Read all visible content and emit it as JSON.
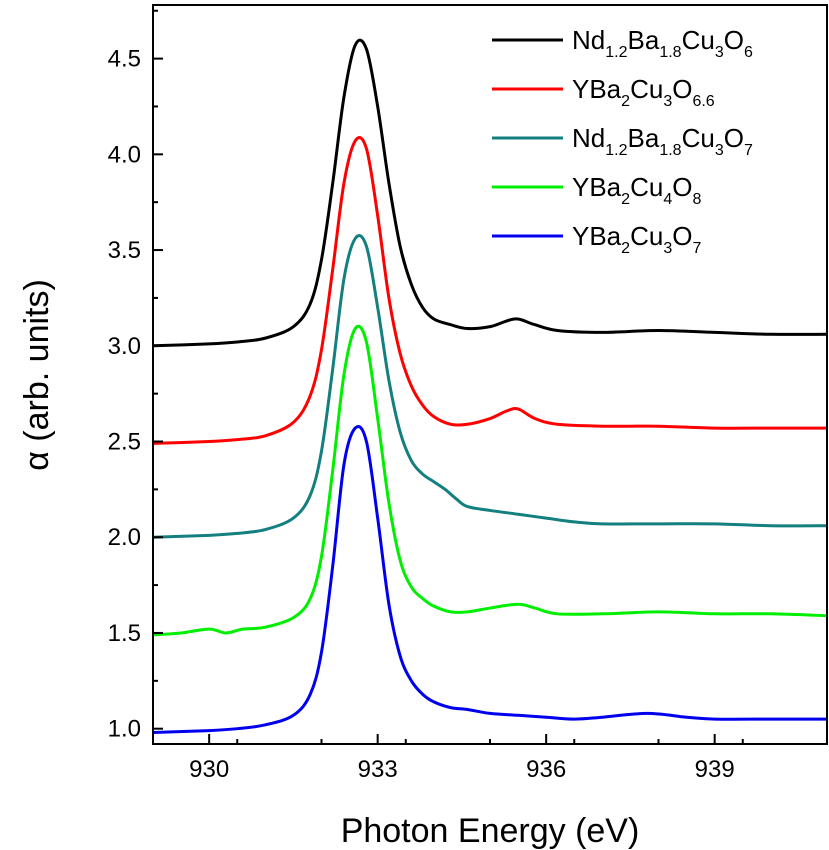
{
  "chart_data": {
    "type": "line",
    "xlabel": "Photon Energy (eV)",
    "ylabel": "α (arb. units)",
    "xlim": [
      929,
      941
    ],
    "ylim": [
      0.92,
      4.78
    ],
    "xticks": [
      930,
      933,
      936,
      939
    ],
    "yticks": [
      1.0,
      1.5,
      2.0,
      2.5,
      3.0,
      3.5,
      4.0,
      4.5
    ],
    "xtick_labels": [
      "930",
      "933",
      "936",
      "939"
    ],
    "ytick_labels": [
      "1.0",
      "1.5",
      "2.0",
      "2.5",
      "3.0",
      "3.5",
      "4.0",
      "4.5"
    ],
    "grid": false,
    "legend_position": "top-right",
    "series": [
      {
        "name": "Nd1.2Ba1.8Cu3O6",
        "name_parts": [
          [
            "Nd",
            ""
          ],
          [
            "1.2",
            "sub"
          ],
          [
            "Ba",
            ""
          ],
          [
            "1.8",
            "sub"
          ],
          [
            "Cu",
            ""
          ],
          [
            "3",
            "sub"
          ],
          [
            "O",
            ""
          ],
          [
            "6",
            "sub"
          ]
        ],
        "color": "#000000",
        "x": [
          929.0,
          930.0,
          930.5,
          931.0,
          931.5,
          931.8,
          932.0,
          932.2,
          932.4,
          932.6,
          932.8,
          933.0,
          933.2,
          933.4,
          933.6,
          933.8,
          934.0,
          934.3,
          934.6,
          935.0,
          935.3,
          935.5,
          935.8,
          936.2,
          937.0,
          938.0,
          939.0,
          940.0,
          941.0
        ],
        "y": [
          3.0,
          3.01,
          3.02,
          3.04,
          3.1,
          3.22,
          3.45,
          3.85,
          4.3,
          4.57,
          4.55,
          4.25,
          3.85,
          3.52,
          3.32,
          3.2,
          3.14,
          3.11,
          3.09,
          3.1,
          3.13,
          3.14,
          3.11,
          3.08,
          3.07,
          3.08,
          3.07,
          3.06,
          3.06
        ]
      },
      {
        "name": "YBa2Cu3O6.6",
        "name_parts": [
          [
            "YBa",
            ""
          ],
          [
            "2",
            "sub"
          ],
          [
            "Cu",
            ""
          ],
          [
            "3",
            "sub"
          ],
          [
            "O",
            ""
          ],
          [
            "6.6",
            "sub"
          ]
        ],
        "color": "#ff0000",
        "x": [
          929.0,
          930.0,
          930.5,
          931.0,
          931.5,
          931.8,
          932.0,
          932.2,
          932.4,
          932.6,
          932.8,
          933.0,
          933.2,
          933.4,
          933.6,
          933.8,
          934.0,
          934.3,
          934.6,
          935.0,
          935.3,
          935.5,
          935.8,
          936.2,
          937.0,
          938.0,
          939.0,
          940.0,
          941.0
        ],
        "y": [
          2.49,
          2.5,
          2.51,
          2.53,
          2.6,
          2.74,
          2.98,
          3.4,
          3.85,
          4.07,
          4.03,
          3.68,
          3.25,
          2.96,
          2.79,
          2.69,
          2.63,
          2.59,
          2.59,
          2.62,
          2.66,
          2.67,
          2.62,
          2.59,
          2.58,
          2.58,
          2.57,
          2.57,
          2.57
        ]
      },
      {
        "name": "Nd1.2Ba1.8Cu3O7",
        "name_parts": [
          [
            "Nd",
            ""
          ],
          [
            "1.2",
            "sub"
          ],
          [
            "Ba",
            ""
          ],
          [
            "1.8",
            "sub"
          ],
          [
            "Cu",
            ""
          ],
          [
            "3",
            "sub"
          ],
          [
            "O",
            ""
          ],
          [
            "7",
            "sub"
          ]
        ],
        "color": "#137f7f",
        "x": [
          929.0,
          930.0,
          930.5,
          931.0,
          931.5,
          931.8,
          932.0,
          932.2,
          932.4,
          932.6,
          932.8,
          933.0,
          933.2,
          933.4,
          933.6,
          933.8,
          934.0,
          934.2,
          934.4,
          934.6,
          935.0,
          935.5,
          936.0,
          936.5,
          937.0,
          938.0,
          939.0,
          940.0,
          941.0
        ],
        "y": [
          2.0,
          2.01,
          2.02,
          2.04,
          2.1,
          2.22,
          2.45,
          2.88,
          3.35,
          3.56,
          3.52,
          3.2,
          2.82,
          2.55,
          2.4,
          2.33,
          2.29,
          2.25,
          2.2,
          2.16,
          2.14,
          2.12,
          2.1,
          2.08,
          2.07,
          2.07,
          2.07,
          2.06,
          2.06
        ]
      },
      {
        "name": "YBa2Cu4O8",
        "name_parts": [
          [
            "YBa",
            ""
          ],
          [
            "2",
            "sub"
          ],
          [
            "Cu",
            ""
          ],
          [
            "4",
            "sub"
          ],
          [
            "O",
            ""
          ],
          [
            "8",
            "sub"
          ]
        ],
        "color": "#00ee00",
        "x": [
          929.0,
          929.5,
          930.0,
          930.3,
          930.6,
          931.0,
          931.5,
          931.8,
          932.0,
          932.2,
          932.4,
          932.6,
          932.8,
          933.0,
          933.2,
          933.4,
          933.6,
          933.8,
          934.0,
          934.3,
          934.6,
          935.0,
          935.5,
          935.8,
          936.2,
          937.0,
          938.0,
          939.0,
          940.0,
          941.0
        ],
        "y": [
          1.49,
          1.5,
          1.52,
          1.5,
          1.52,
          1.53,
          1.58,
          1.68,
          1.9,
          2.35,
          2.85,
          3.09,
          3.02,
          2.62,
          2.18,
          1.88,
          1.74,
          1.68,
          1.64,
          1.61,
          1.61,
          1.63,
          1.65,
          1.63,
          1.6,
          1.6,
          1.61,
          1.6,
          1.6,
          1.59
        ]
      },
      {
        "name": "YBa2Cu3O7",
        "name_parts": [
          [
            "YBa",
            ""
          ],
          [
            "2",
            "sub"
          ],
          [
            "Cu",
            ""
          ],
          [
            "3",
            "sub"
          ],
          [
            "O",
            ""
          ],
          [
            "7",
            "sub"
          ]
        ],
        "color": "#0000ee",
        "x": [
          929.0,
          930.0,
          930.5,
          931.0,
          931.5,
          931.8,
          932.0,
          932.2,
          932.4,
          932.6,
          932.8,
          933.0,
          933.2,
          933.4,
          933.6,
          933.8,
          934.0,
          934.3,
          934.6,
          935.0,
          935.5,
          936.0,
          936.5,
          937.0,
          937.8,
          938.5,
          939.0,
          940.0,
          941.0
        ],
        "y": [
          0.98,
          0.99,
          1.0,
          1.02,
          1.07,
          1.18,
          1.4,
          1.85,
          2.38,
          2.57,
          2.5,
          2.1,
          1.65,
          1.38,
          1.25,
          1.18,
          1.14,
          1.11,
          1.1,
          1.08,
          1.07,
          1.06,
          1.05,
          1.06,
          1.08,
          1.06,
          1.05,
          1.05,
          1.05
        ]
      }
    ]
  }
}
